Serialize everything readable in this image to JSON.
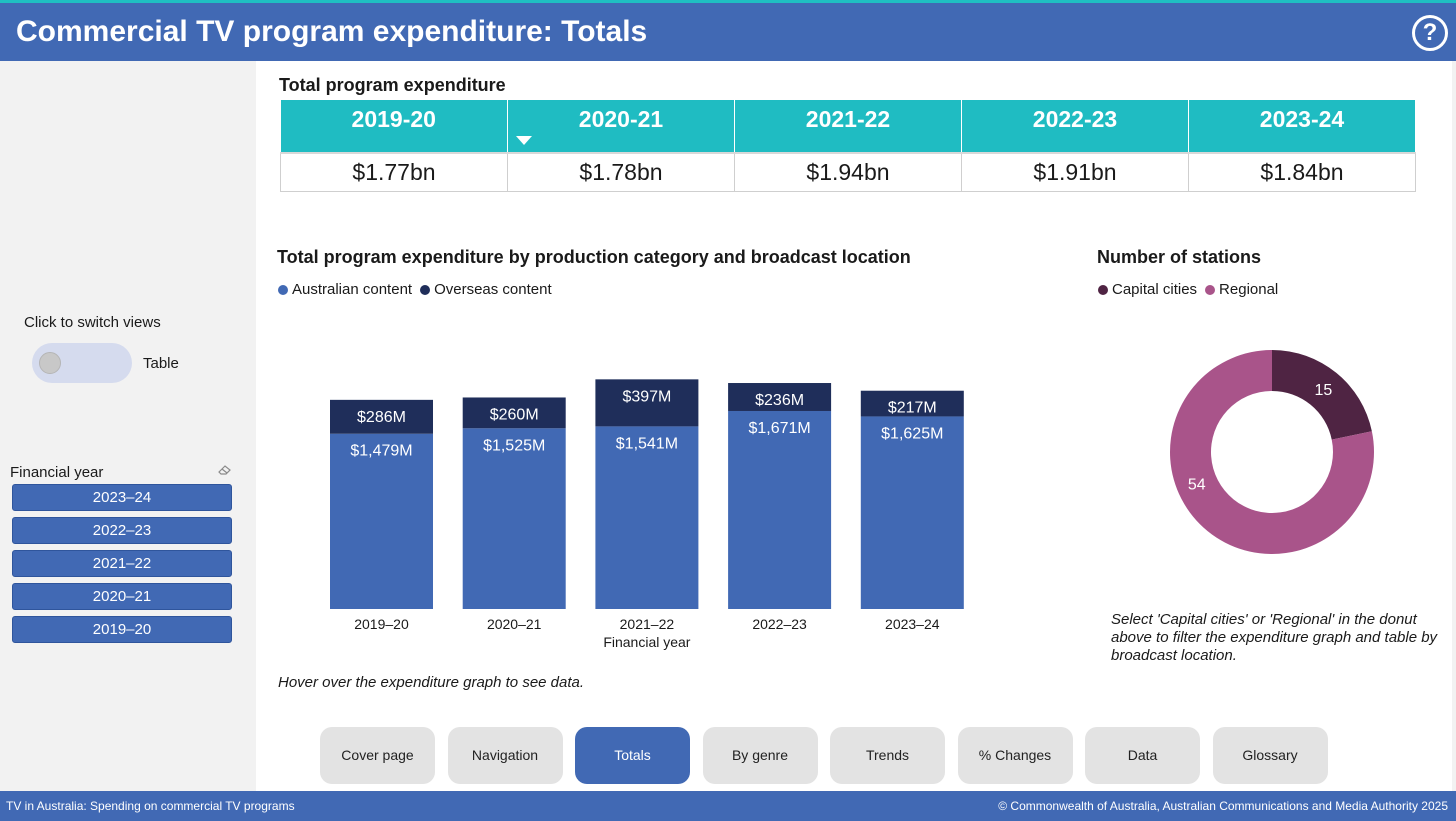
{
  "header": {
    "title": "Commercial TV program expenditure: Totals",
    "help_icon": "?"
  },
  "sidebar": {
    "switch_label": "Click to switch views",
    "toggle_text": "Table",
    "filter_label": "Financial year",
    "years": [
      "2023–24",
      "2022–23",
      "2021–22",
      "2020–21",
      "2019–20"
    ]
  },
  "totals": {
    "title": "Total program expenditure",
    "headers": [
      "2019-20",
      "2020-21",
      "2021-22",
      "2022-23",
      "2023-24"
    ],
    "values": [
      "$1.77bn",
      "$1.78bn",
      "$1.94bn",
      "$1.91bn",
      "$1.84bn"
    ]
  },
  "colors": {
    "australian": "#4169b4",
    "overseas": "#1f2e5a",
    "capital": "#4f2443",
    "regional": "#a9548a",
    "teal": "#1fbcc2"
  },
  "chart_data": [
    {
      "type": "bar",
      "stacked": true,
      "title": "Total program expenditure by production category and broadcast location",
      "xlabel": "Financial year",
      "ylabel": "",
      "legend_position": "top-left",
      "categories": [
        "2019–20",
        "2020–21",
        "2021–22",
        "2022–23",
        "2023–24"
      ],
      "series": [
        {
          "name": "Australian content",
          "values": [
            1479,
            1525,
            1541,
            1671,
            1625
          ],
          "labels": [
            "$1,479M",
            "$1,525M",
            "$1,541M",
            "$1,671M",
            "$1,625M"
          ]
        },
        {
          "name": "Overseas content",
          "values": [
            286,
            260,
            397,
            236,
            217
          ],
          "labels": [
            "$286M",
            "$260M",
            "$397M",
            "$236M",
            "$217M"
          ]
        }
      ]
    },
    {
      "type": "pie",
      "donut": true,
      "title": "Number of stations",
      "legend_position": "top-left",
      "labels": [
        "Capital cities",
        "Regional"
      ],
      "values": [
        15,
        54
      ]
    }
  ],
  "notes": {
    "hover": "Hover over the expenditure graph to see data.",
    "donut": "Select 'Capital cities' or 'Regional' in the donut above to filter the expenditure graph and table by broadcast location."
  },
  "nav": {
    "items": [
      "Cover page",
      "Navigation",
      "Totals",
      "By genre",
      "Trends",
      "% Changes",
      "Data",
      "Glossary"
    ],
    "active": "Totals"
  },
  "footer": {
    "left": "TV in Australia: Spending on commercial TV programs",
    "right": "© Commonwealth of Australia, Australian Communications and Media Authority 2025"
  }
}
